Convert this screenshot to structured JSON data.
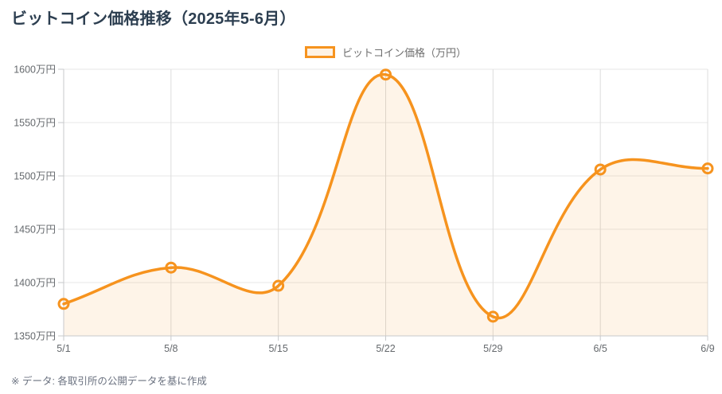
{
  "page": {
    "title": "ビットコイン価格推移（2025年5-6月）",
    "footer": "※ データ: 各取引所の公開データを基に作成"
  },
  "chart_data": {
    "type": "area",
    "title": "ビットコイン価格推移（2025年5-6月）",
    "legend_label": "ビットコイン価格（万円）",
    "legend_position": "top",
    "categories": [
      "5/1",
      "5/8",
      "5/15",
      "5/22",
      "5/29",
      "6/5",
      "6/9"
    ],
    "values": [
      1380,
      1414,
      1397,
      1595,
      1368,
      1506,
      1507
    ],
    "xlabel": "",
    "ylabel": "",
    "y_unit": "万円",
    "ylim": [
      1350,
      1600
    ],
    "y_step": 50,
    "grid": true,
    "curve": "smooth-spline",
    "colors": {
      "line": "#f6931e",
      "fill": "rgba(246,147,30,0.10)",
      "marker_fill": "transparent",
      "grid": "#e7e7e7",
      "grid_vertical": "#dcdcdc",
      "axis": "#c7c9cb",
      "tick_text": "#65696d",
      "title_text": "#2c3e50"
    }
  }
}
